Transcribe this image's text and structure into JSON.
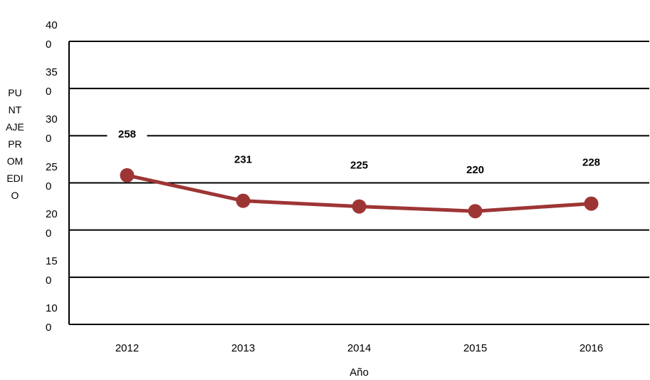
{
  "chart_data": {
    "type": "line",
    "y_label": "PUNTAJE PROMEDIO",
    "x_label": "Año",
    "categories": [
      "2012",
      "2013",
      "2014",
      "2015",
      "2016"
    ],
    "series": [
      {
        "name": "PUNTAJE PROMEDIO",
        "color": "#9e3535",
        "values": [
          258,
          231,
          225,
          220,
          228
        ]
      }
    ],
    "ylim": [
      100,
      400
    ],
    "yticks": [
      100,
      150,
      200,
      250,
      300,
      350,
      400
    ],
    "grid": true
  }
}
